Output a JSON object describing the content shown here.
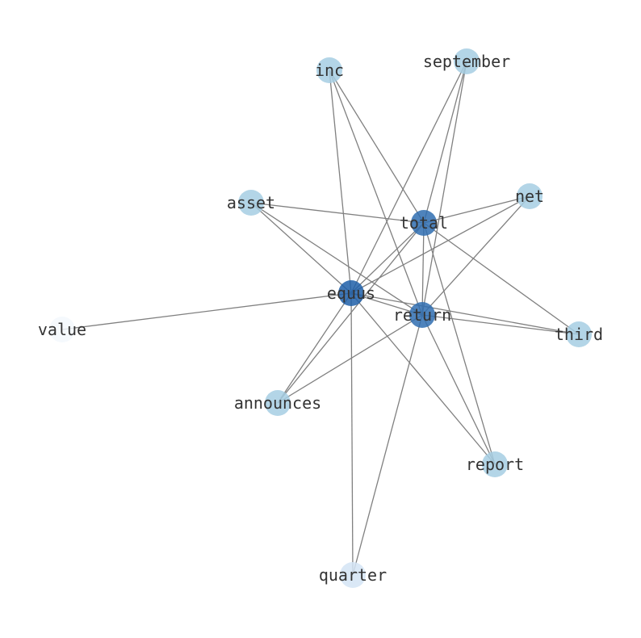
{
  "diagram": {
    "type": "network",
    "edge_color": "#808080",
    "nodes": [
      {
        "id": "inc",
        "label": "inc",
        "color": "#a6cee3"
      },
      {
        "id": "september",
        "label": "september",
        "color": "#a6cee3"
      },
      {
        "id": "asset",
        "label": "asset",
        "color": "#a6cee3"
      },
      {
        "id": "total",
        "label": "total",
        "color": "#2f6db0"
      },
      {
        "id": "net",
        "label": "net",
        "color": "#a6cee3"
      },
      {
        "id": "equus",
        "label": "equus",
        "color": "#1f5fa8"
      },
      {
        "id": "return",
        "label": "return",
        "color": "#2f6db0"
      },
      {
        "id": "value",
        "label": "value",
        "color": "#f3f8fd"
      },
      {
        "id": "third",
        "label": "third",
        "color": "#a6cee3"
      },
      {
        "id": "announces",
        "label": "announces",
        "color": "#a6cee3"
      },
      {
        "id": "report",
        "label": "report",
        "color": "#a6cee3"
      },
      {
        "id": "quarter",
        "label": "quarter",
        "color": "#d3e4f4"
      }
    ],
    "edges": [
      [
        "inc",
        "equus"
      ],
      [
        "inc",
        "return"
      ],
      [
        "inc",
        "total"
      ],
      [
        "september",
        "equus"
      ],
      [
        "september",
        "total"
      ],
      [
        "september",
        "return"
      ],
      [
        "asset",
        "total"
      ],
      [
        "asset",
        "equus"
      ],
      [
        "asset",
        "return"
      ],
      [
        "net",
        "total"
      ],
      [
        "net",
        "equus"
      ],
      [
        "net",
        "return"
      ],
      [
        "total",
        "equus"
      ],
      [
        "total",
        "return"
      ],
      [
        "total",
        "third"
      ],
      [
        "total",
        "announces"
      ],
      [
        "total",
        "report"
      ],
      [
        "equus",
        "value"
      ],
      [
        "equus",
        "third"
      ],
      [
        "equus",
        "announces"
      ],
      [
        "equus",
        "quarter"
      ],
      [
        "equus",
        "report"
      ],
      [
        "equus",
        "return"
      ],
      [
        "return",
        "third"
      ],
      [
        "return",
        "announces"
      ],
      [
        "return",
        "quarter"
      ],
      [
        "return",
        "report"
      ]
    ]
  }
}
